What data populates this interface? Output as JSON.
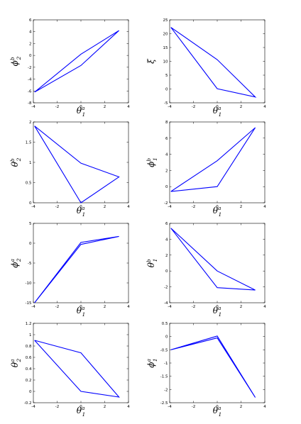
{
  "colors": {
    "series": "#0000ff",
    "axes": "#000000",
    "background": "#ffffff"
  },
  "chart_data": [
    {
      "type": "line",
      "xlabel": {
        "sym": "θ",
        "sub": "1",
        "sup": "a"
      },
      "ylabel": {
        "sym": "ϕ",
        "sub": "2",
        "sup": "b"
      },
      "xlim": [
        -4,
        4
      ],
      "ylim": [
        -8,
        6
      ],
      "xticks": [
        "-4",
        "-2",
        "0",
        "2",
        "4"
      ],
      "yticks": [
        "-8",
        "-6",
        "-4",
        "-2",
        "0",
        "2",
        "4",
        "6"
      ],
      "x": [
        -3.9,
        0,
        3.2,
        0,
        -3.9
      ],
      "y": [
        -6.2,
        0.2,
        4.2,
        -1.7,
        -6.2
      ]
    },
    {
      "type": "line",
      "xlabel": {
        "sym": "θ",
        "sub": "1",
        "sup": "a"
      },
      "ylabel": {
        "sym": "ξ",
        "sub": "",
        "sup": ""
      },
      "xlim": [
        -4,
        4
      ],
      "ylim": [
        -5,
        25
      ],
      "xticks": [
        "-4",
        "-2",
        "0",
        "2",
        "4"
      ],
      "yticks": [
        "-5",
        "0",
        "5",
        "10",
        "15",
        "20",
        "25"
      ],
      "x": [
        -3.9,
        0,
        3.2,
        0,
        -3.9
      ],
      "y": [
        22.3,
        10.6,
        -2.9,
        0.1,
        22.3
      ]
    },
    {
      "type": "line",
      "xlabel": {
        "sym": "θ",
        "sub": "1",
        "sup": "a"
      },
      "ylabel": {
        "sym": "θ",
        "sub": "2",
        "sup": "b"
      },
      "xlim": [
        -4,
        4
      ],
      "ylim": [
        0,
        2
      ],
      "xticks": [
        "-4",
        "-2",
        "0",
        "2",
        "4"
      ],
      "yticks": [
        "0",
        "0.5",
        "1",
        "1.5",
        "2"
      ],
      "x": [
        -3.9,
        0,
        3.2,
        0,
        -3.9
      ],
      "y": [
        1.9,
        0.98,
        0.64,
        0,
        1.9
      ]
    },
    {
      "type": "line",
      "xlabel": {
        "sym": "θ",
        "sub": "1",
        "sup": "a"
      },
      "ylabel": {
        "sym": "ϕ",
        "sub": "1",
        "sup": "b"
      },
      "xlim": [
        -4,
        4
      ],
      "ylim": [
        -2,
        8
      ],
      "xticks": [
        "-4",
        "-2",
        "0",
        "2",
        "4"
      ],
      "yticks": [
        "-2",
        "0",
        "2",
        "4",
        "6",
        "8"
      ],
      "x": [
        -3.9,
        0,
        3.2,
        0,
        -3.9
      ],
      "y": [
        -0.6,
        3.2,
        7.3,
        0,
        -0.6
      ]
    },
    {
      "type": "line",
      "xlabel": {
        "sym": "θ",
        "sub": "1",
        "sup": "a"
      },
      "ylabel": {
        "sym": "ϕ",
        "sub": "2",
        "sup": "a"
      },
      "xlim": [
        -4,
        4
      ],
      "ylim": [
        -15,
        5
      ],
      "xticks": [
        "-4",
        "-2",
        "0",
        "2",
        "4"
      ],
      "yticks": [
        "-15",
        "-10",
        "-5",
        "0",
        "5"
      ],
      "x": [
        -3.9,
        0,
        3.2,
        0,
        -3.9
      ],
      "y": [
        -15,
        0.2,
        1.7,
        -0.3,
        -15
      ]
    },
    {
      "type": "line",
      "xlabel": {
        "sym": "θ",
        "sub": "1",
        "sup": "a"
      },
      "ylabel": {
        "sym": "θ",
        "sub": "1",
        "sup": "b"
      },
      "xlim": [
        -4,
        4
      ],
      "ylim": [
        -4,
        6
      ],
      "xticks": [
        "-4",
        "-2",
        "0",
        "2",
        "4"
      ],
      "yticks": [
        "-4",
        "-2",
        "0",
        "2",
        "4",
        "6"
      ],
      "x": [
        -3.9,
        0,
        3.2,
        0,
        -3.9
      ],
      "y": [
        5.4,
        0,
        -2.4,
        -2.1,
        5.4
      ]
    },
    {
      "type": "line",
      "xlabel": {
        "sym": "θ",
        "sub": "1",
        "sup": "a"
      },
      "ylabel": {
        "sym": "θ",
        "sub": "2",
        "sup": "a"
      },
      "xlim": [
        -4,
        4
      ],
      "ylim": [
        -0.2,
        1.2
      ],
      "xticks": [
        "-4",
        "-2",
        "0",
        "2",
        "4"
      ],
      "yticks": [
        "-0.2",
        "0",
        "0.2",
        "0.4",
        "0.6",
        "0.8",
        "1",
        "1.2"
      ],
      "x": [
        -3.9,
        0,
        3.2,
        0,
        -3.9
      ],
      "y": [
        0.9,
        0.68,
        -0.1,
        0,
        0.9
      ]
    },
    {
      "type": "line",
      "xlabel": {
        "sym": "θ",
        "sub": "1",
        "sup": "a"
      },
      "ylabel": {
        "sym": "ϕ",
        "sub": "1",
        "sup": "a"
      },
      "xlim": [
        -4,
        4
      ],
      "ylim": [
        -2.5,
        0.5
      ],
      "xticks": [
        "-4",
        "-2",
        "0",
        "2",
        "4"
      ],
      "yticks": [
        "-2.5",
        "-2",
        "-1.5",
        "-1",
        "-0.5",
        "0",
        "0.5"
      ],
      "x": [
        -3.9,
        0,
        3.2,
        0,
        -3.9
      ],
      "y": [
        -0.5,
        0.02,
        -2.3,
        -0.05,
        -0.5
      ]
    }
  ]
}
